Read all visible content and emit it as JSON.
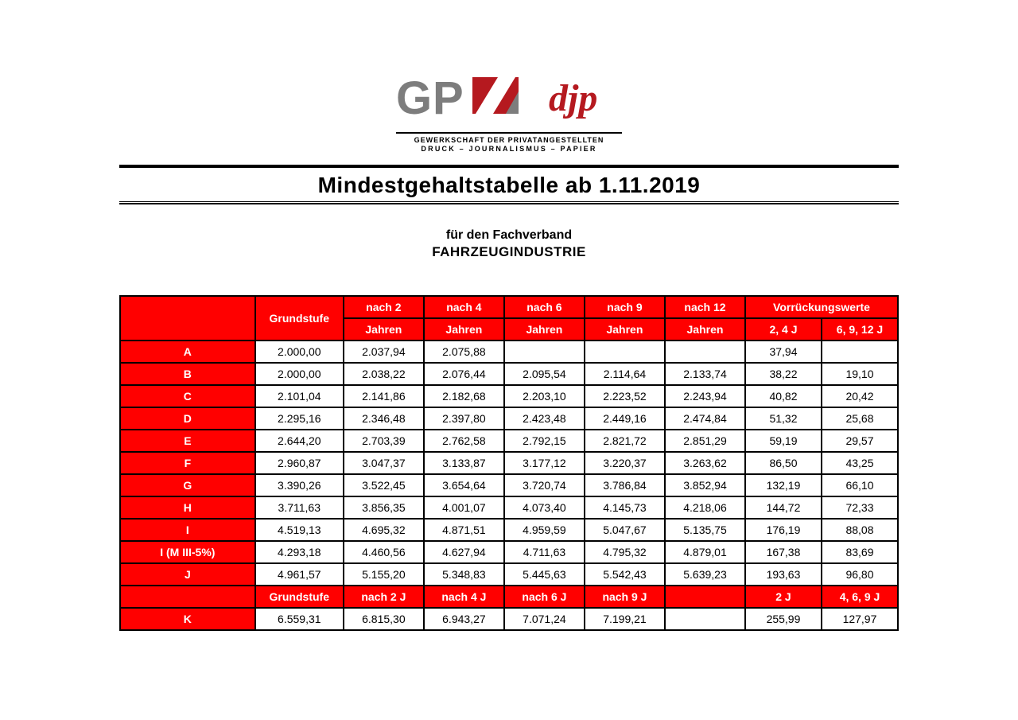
{
  "logo": {
    "tagline1": "GEWERKSCHAFT DER PRIVATANGESTELLTEN",
    "tagline2": "DRUCK – JOURNALISMUS – PAPIER"
  },
  "title": "Mindestgehaltstabelle ab 1.11.2019",
  "subtitle_line1": "für den Fachverband",
  "subtitle_line2": "FAHRZEUGINDUSTRIE",
  "colors": {
    "header_bg": "#ff0000",
    "header_fg": "#ffffff",
    "cell_bg": "#ffffff",
    "cell_fg": "#000000",
    "border": "#000000",
    "logo_gray": "#7d7d7d",
    "logo_red": "#b5191f"
  },
  "typography": {
    "title_fontsize_pt": 21,
    "subtitle_fontsize_pt": 12,
    "header_fontsize_pt": 10.5,
    "cell_fontsize_pt": 10.5,
    "font_family": "Arial"
  },
  "table": {
    "header_top": {
      "corner": "",
      "grundstufe": "Grundstufe",
      "nach2": "nach 2",
      "nach4": "nach 4",
      "nach6": "nach 6",
      "nach9": "nach 9",
      "nach12": "nach 12",
      "vorr": "Vorrückungswerte"
    },
    "header_bottom": {
      "jahren": "Jahren",
      "v24": "2, 4 J",
      "v6912": "6, 9, 12 J"
    },
    "rows": [
      {
        "label": "A",
        "grund": "2.000,00",
        "n2": "2.037,94",
        "n4": "2.075,88",
        "n6": "",
        "n9": "",
        "n12": "",
        "v1": "37,94",
        "v2": ""
      },
      {
        "label": "B",
        "grund": "2.000,00",
        "n2": "2.038,22",
        "n4": "2.076,44",
        "n6": "2.095,54",
        "n9": "2.114,64",
        "n12": "2.133,74",
        "v1": "38,22",
        "v2": "19,10"
      },
      {
        "label": "C",
        "grund": "2.101,04",
        "n2": "2.141,86",
        "n4": "2.182,68",
        "n6": "2.203,10",
        "n9": "2.223,52",
        "n12": "2.243,94",
        "v1": "40,82",
        "v2": "20,42"
      },
      {
        "label": "D",
        "grund": "2.295,16",
        "n2": "2.346,48",
        "n4": "2.397,80",
        "n6": "2.423,48",
        "n9": "2.449,16",
        "n12": "2.474,84",
        "v1": "51,32",
        "v2": "25,68"
      },
      {
        "label": "E",
        "grund": "2.644,20",
        "n2": "2.703,39",
        "n4": "2.762,58",
        "n6": "2.792,15",
        "n9": "2.821,72",
        "n12": "2.851,29",
        "v1": "59,19",
        "v2": "29,57"
      },
      {
        "label": "F",
        "grund": "2.960,87",
        "n2": "3.047,37",
        "n4": "3.133,87",
        "n6": "3.177,12",
        "n9": "3.220,37",
        "n12": "3.263,62",
        "v1": "86,50",
        "v2": "43,25"
      },
      {
        "label": "G",
        "grund": "3.390,26",
        "n2": "3.522,45",
        "n4": "3.654,64",
        "n6": "3.720,74",
        "n9": "3.786,84",
        "n12": "3.852,94",
        "v1": "132,19",
        "v2": "66,10"
      },
      {
        "label": "H",
        "grund": "3.711,63",
        "n2": "3.856,35",
        "n4": "4.001,07",
        "n6": "4.073,40",
        "n9": "4.145,73",
        "n12": "4.218,06",
        "v1": "144,72",
        "v2": "72,33"
      },
      {
        "label": "I",
        "grund": "4.519,13",
        "n2": "4.695,32",
        "n4": "4.871,51",
        "n6": "4.959,59",
        "n9": "5.047,67",
        "n12": "5.135,75",
        "v1": "176,19",
        "v2": "88,08"
      },
      {
        "label": "I (M III-5%)",
        "grund": "4.293,18",
        "n2": "4.460,56",
        "n4": "4.627,94",
        "n6": "4.711,63",
        "n9": "4.795,32",
        "n12": "4.879,01",
        "v1": "167,38",
        "v2": "83,69"
      },
      {
        "label": "J",
        "grund": "4.961,57",
        "n2": "5.155,20",
        "n4": "5.348,83",
        "n6": "5.445,63",
        "n9": "5.542,43",
        "n12": "5.639,23",
        "v1": "193,63",
        "v2": "96,80"
      }
    ],
    "mid_header": {
      "corner": "",
      "grundstufe": "Grundstufe",
      "n2": "nach 2 J",
      "n4": "nach 4 J",
      "n6": "nach 6 J",
      "n9": "nach 9 J",
      "n12": "",
      "v1": "2 J",
      "v2": "4, 6, 9 J"
    },
    "row_k": {
      "label": "K",
      "grund": "6.559,31",
      "n2": "6.815,30",
      "n4": "6.943,27",
      "n6": "7.071,24",
      "n9": "7.199,21",
      "n12": "",
      "v1": "255,99",
      "v2": "127,97"
    }
  }
}
